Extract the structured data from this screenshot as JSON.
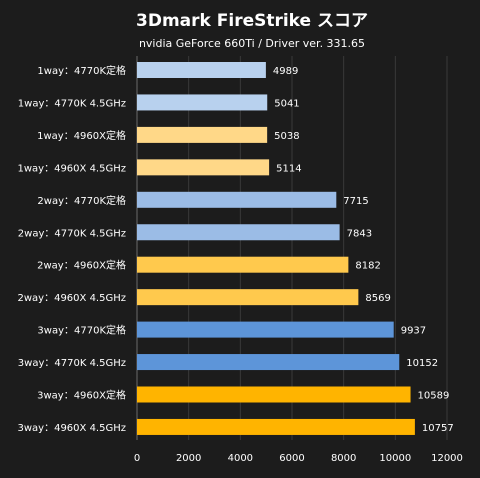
{
  "chart_data": {
    "type": "bar",
    "orientation": "horizontal",
    "title": "3Dmark FireStrike スコア",
    "subtitle": "nvidia GeForce 660Ti / Driver ver. 331.65",
    "categories": [
      "1way：4770K定格",
      "1way：4770K 4.5GHz",
      "1way：4960X定格",
      "1way：4960X 4.5GHz",
      "2way：4770K定格",
      "2way：4770K 4.5GHz",
      "2way：4960X定格",
      "2way：4960X 4.5GHz",
      "3way：4770K定格",
      "3way：4770K 4.5GHz",
      "3way：4960X定格",
      "3way：4960X 4.5GHz"
    ],
    "values": [
      4989,
      5041,
      5038,
      5114,
      7715,
      7843,
      8182,
      8569,
      9937,
      10152,
      10589,
      10757
    ],
    "colors": [
      "#b8d1ee",
      "#b8d1ee",
      "#ffd888",
      "#ffd888",
      "#9bbce6",
      "#9bbce6",
      "#ffc94d",
      "#ffc94d",
      "#5d95d9",
      "#5d95d9",
      "#ffb400",
      "#ffb400"
    ],
    "xlim": [
      0,
      12000
    ],
    "xticks": [
      0,
      2000,
      4000,
      6000,
      8000,
      10000,
      12000
    ],
    "grid": true,
    "legend": "none"
  }
}
